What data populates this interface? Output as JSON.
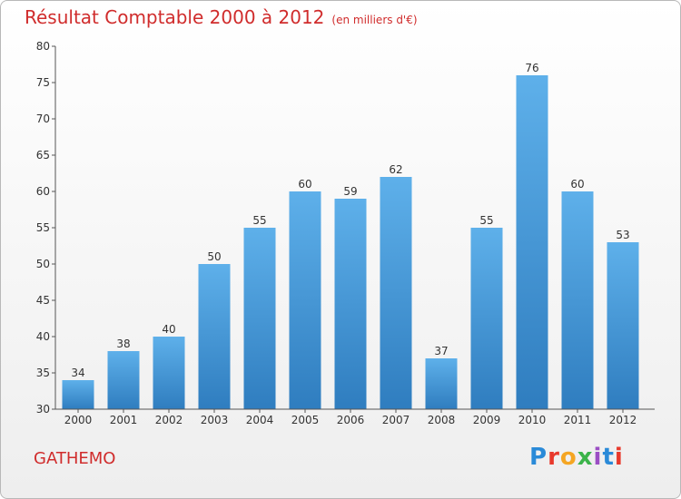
{
  "title": "Résultat Comptable 2000 à 2012",
  "subtitle": "(en milliers d'€)",
  "commune": "GATHEMO",
  "logo": {
    "letters": [
      "P",
      "r",
      "o",
      "x",
      "i",
      "t",
      "i"
    ],
    "colors": [
      "#2a8ad8",
      "#e8392c",
      "#f5a623",
      "#3bb34a",
      "#9b4fc4",
      "#2a8ad8",
      "#e8392c"
    ]
  },
  "colors": {
    "bar_top": "#5eb0ea",
    "bar_bottom": "#2f7dbf",
    "axis": "#555555",
    "grid": "#cccccc",
    "title": "#d02c2c"
  },
  "chart_data": {
    "type": "bar",
    "categories": [
      "2000",
      "2001",
      "2002",
      "2003",
      "2004",
      "2005",
      "2006",
      "2007",
      "2008",
      "2009",
      "2010",
      "2011",
      "2012"
    ],
    "values": [
      34,
      38,
      40,
      50,
      55,
      60,
      59,
      62,
      37,
      55,
      76,
      60,
      53
    ],
    "ylim": [
      30,
      80
    ],
    "yticks": [
      30,
      35,
      40,
      45,
      50,
      55,
      60,
      65,
      70,
      75,
      80
    ],
    "title": "Résultat Comptable 2000 à 2012",
    "xlabel": "",
    "ylabel": "",
    "grid": false,
    "legend": "none"
  }
}
